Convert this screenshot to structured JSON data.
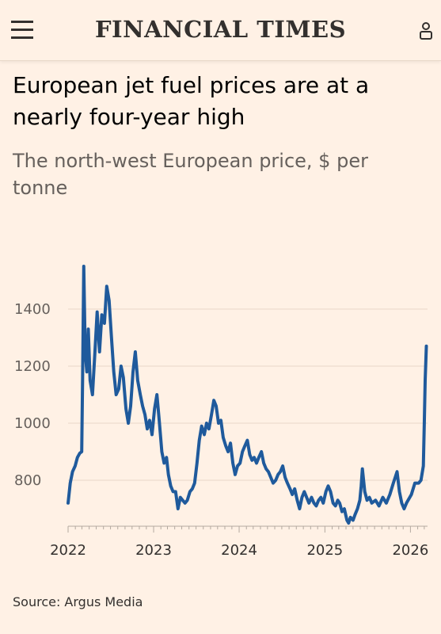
{
  "header": {
    "brand": "FINANCIAL TIMES",
    "menu_icon": "hamburger-menu-icon",
    "user_icon": "user-account-icon"
  },
  "article": {
    "title": "European jet fuel prices are at a nearly four-year high",
    "subtitle": "The north-west European price, $ per tonne",
    "source": "Source: Argus Media"
  },
  "colors": {
    "background": "#fff1e5",
    "line": "#1f5a9c",
    "grid": "#e8d8c9",
    "axis_text": "#66605c"
  },
  "chart_data": {
    "type": "line",
    "title": "European jet fuel prices are at a nearly four-year high",
    "subtitle": "The north-west European price, $ per tonne",
    "xlabel": "",
    "ylabel": "",
    "xlim": [
      "2022-01-01",
      "2026-03-15"
    ],
    "ylim": [
      650,
      1650
    ],
    "yticks": [
      800,
      1000,
      1200,
      1400
    ],
    "xticks": [
      "2022",
      "2023",
      "2024",
      "2025",
      "2026"
    ],
    "grid": true,
    "series": [
      {
        "color": "#1f5a9c",
        "points": [
          [
            "2022-01-01",
            720
          ],
          [
            "2022-01-10",
            790
          ],
          [
            "2022-01-20",
            830
          ],
          [
            "2022-01-31",
            850
          ],
          [
            "2022-02-10",
            880
          ],
          [
            "2022-02-20",
            895
          ],
          [
            "2022-02-28",
            900
          ],
          [
            "2022-03-04",
            1150
          ],
          [
            "2022-03-09",
            1550
          ],
          [
            "2022-03-15",
            1250
          ],
          [
            "2022-03-22",
            1180
          ],
          [
            "2022-03-28",
            1330
          ],
          [
            "2022-04-05",
            1150
          ],
          [
            "2022-04-15",
            1100
          ],
          [
            "2022-04-25",
            1240
          ],
          [
            "2022-05-05",
            1390
          ],
          [
            "2022-05-15",
            1250
          ],
          [
            "2022-05-25",
            1380
          ],
          [
            "2022-06-05",
            1350
          ],
          [
            "2022-06-15",
            1480
          ],
          [
            "2022-06-25",
            1430
          ],
          [
            "2022-07-05",
            1300
          ],
          [
            "2022-07-15",
            1180
          ],
          [
            "2022-07-25",
            1100
          ],
          [
            "2022-08-05",
            1120
          ],
          [
            "2022-08-15",
            1200
          ],
          [
            "2022-08-25",
            1160
          ],
          [
            "2022-09-05",
            1050
          ],
          [
            "2022-09-15",
            1000
          ],
          [
            "2022-09-25",
            1060
          ],
          [
            "2022-10-05",
            1180
          ],
          [
            "2022-10-15",
            1250
          ],
          [
            "2022-10-25",
            1150
          ],
          [
            "2022-11-05",
            1100
          ],
          [
            "2022-11-15",
            1060
          ],
          [
            "2022-11-25",
            1030
          ],
          [
            "2022-12-05",
            980
          ],
          [
            "2022-12-15",
            1010
          ],
          [
            "2022-12-25",
            960
          ],
          [
            "2023-01-05",
            1050
          ],
          [
            "2023-01-15",
            1100
          ],
          [
            "2023-01-25",
            1010
          ],
          [
            "2023-02-05",
            900
          ],
          [
            "2023-02-15",
            860
          ],
          [
            "2023-02-25",
            880
          ],
          [
            "2023-03-05",
            820
          ],
          [
            "2023-03-15",
            780
          ],
          [
            "2023-03-25",
            760
          ],
          [
            "2023-04-05",
            760
          ],
          [
            "2023-04-15",
            700
          ],
          [
            "2023-04-25",
            740
          ],
          [
            "2023-05-05",
            730
          ],
          [
            "2023-05-15",
            720
          ],
          [
            "2023-05-25",
            730
          ],
          [
            "2023-06-05",
            760
          ],
          [
            "2023-06-15",
            770
          ],
          [
            "2023-06-25",
            790
          ],
          [
            "2023-07-05",
            860
          ],
          [
            "2023-07-15",
            940
          ],
          [
            "2023-07-25",
            990
          ],
          [
            "2023-08-05",
            960
          ],
          [
            "2023-08-15",
            1000
          ],
          [
            "2023-08-25",
            980
          ],
          [
            "2023-09-05",
            1030
          ],
          [
            "2023-09-15",
            1080
          ],
          [
            "2023-09-25",
            1060
          ],
          [
            "2023-10-05",
            1000
          ],
          [
            "2023-10-15",
            1010
          ],
          [
            "2023-10-25",
            950
          ],
          [
            "2023-11-05",
            920
          ],
          [
            "2023-11-15",
            900
          ],
          [
            "2023-11-25",
            930
          ],
          [
            "2023-12-05",
            860
          ],
          [
            "2023-12-15",
            820
          ],
          [
            "2023-12-25",
            850
          ],
          [
            "2024-01-05",
            860
          ],
          [
            "2024-01-15",
            900
          ],
          [
            "2024-01-25",
            920
          ],
          [
            "2024-02-05",
            940
          ],
          [
            "2024-02-15",
            890
          ],
          [
            "2024-02-25",
            870
          ],
          [
            "2024-03-05",
            880
          ],
          [
            "2024-03-15",
            860
          ],
          [
            "2024-03-25",
            880
          ],
          [
            "2024-04-05",
            900
          ],
          [
            "2024-04-15",
            860
          ],
          [
            "2024-04-25",
            840
          ],
          [
            "2024-05-05",
            830
          ],
          [
            "2024-05-15",
            810
          ],
          [
            "2024-05-25",
            790
          ],
          [
            "2024-06-05",
            800
          ],
          [
            "2024-06-15",
            820
          ],
          [
            "2024-06-25",
            830
          ],
          [
            "2024-07-05",
            850
          ],
          [
            "2024-07-15",
            810
          ],
          [
            "2024-07-25",
            790
          ],
          [
            "2024-08-05",
            770
          ],
          [
            "2024-08-15",
            750
          ],
          [
            "2024-08-25",
            770
          ],
          [
            "2024-09-05",
            730
          ],
          [
            "2024-09-15",
            700
          ],
          [
            "2024-09-25",
            740
          ],
          [
            "2024-10-05",
            760
          ],
          [
            "2024-10-15",
            740
          ],
          [
            "2024-10-25",
            720
          ],
          [
            "2024-11-05",
            740
          ],
          [
            "2024-11-15",
            720
          ],
          [
            "2024-11-25",
            710
          ],
          [
            "2024-12-05",
            730
          ],
          [
            "2024-12-15",
            740
          ],
          [
            "2024-12-25",
            720
          ],
          [
            "2025-01-05",
            760
          ],
          [
            "2025-01-15",
            780
          ],
          [
            "2025-01-25",
            760
          ],
          [
            "2025-02-05",
            720
          ],
          [
            "2025-02-15",
            710
          ],
          [
            "2025-02-25",
            730
          ],
          [
            "2025-03-05",
            720
          ],
          [
            "2025-03-15",
            690
          ],
          [
            "2025-03-25",
            700
          ],
          [
            "2025-04-05",
            660
          ],
          [
            "2025-04-12",
            650
          ],
          [
            "2025-04-20",
            670
          ],
          [
            "2025-05-01",
            660
          ],
          [
            "2025-05-10",
            680
          ],
          [
            "2025-05-20",
            700
          ],
          [
            "2025-05-30",
            730
          ],
          [
            "2025-06-05",
            780
          ],
          [
            "2025-06-10",
            840
          ],
          [
            "2025-06-20",
            760
          ],
          [
            "2025-06-30",
            730
          ],
          [
            "2025-07-10",
            740
          ],
          [
            "2025-07-20",
            720
          ],
          [
            "2025-08-05",
            730
          ],
          [
            "2025-08-20",
            710
          ],
          [
            "2025-09-05",
            740
          ],
          [
            "2025-09-20",
            720
          ],
          [
            "2025-10-05",
            750
          ],
          [
            "2025-10-20",
            790
          ],
          [
            "2025-11-05",
            830
          ],
          [
            "2025-11-15",
            760
          ],
          [
            "2025-11-25",
            720
          ],
          [
            "2025-12-05",
            700
          ],
          [
            "2025-12-15",
            720
          ],
          [
            "2026-01-05",
            750
          ],
          [
            "2026-01-20",
            790
          ],
          [
            "2026-02-05",
            790
          ],
          [
            "2026-02-15",
            800
          ],
          [
            "2026-02-25",
            850
          ],
          [
            "2026-03-01",
            1000
          ],
          [
            "2026-03-05",
            1150
          ],
          [
            "2026-03-10",
            1270
          ]
        ]
      }
    ]
  }
}
